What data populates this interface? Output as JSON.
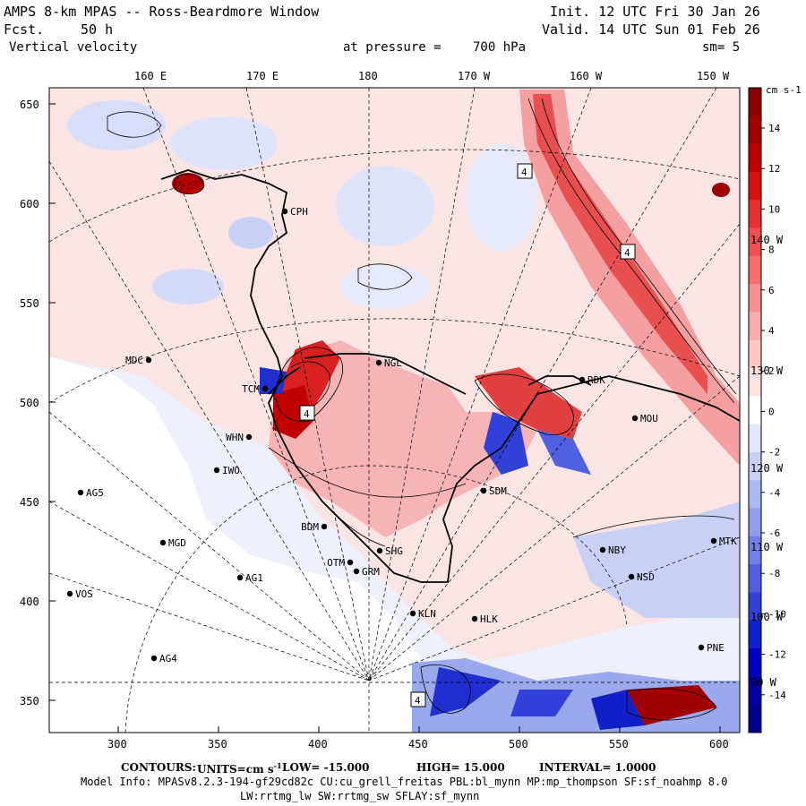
{
  "header": {
    "title": "AMPS 8-km MPAS -- Ross-Beardmore Window",
    "forecast_label": "Fcst.",
    "forecast_value": "50 h",
    "field": "Vertical velocity",
    "init": "Init. 12 UTC Fri 30 Jan 26",
    "valid": "Valid. 14 UTC Sun 01 Feb 26",
    "pressure_label": "at pressure =",
    "pressure_value": "700 hPa",
    "smoothing": "sm= 5"
  },
  "top_axis": [
    "160 E",
    "170 E",
    "180",
    "170 W",
    "160 W",
    "150 W"
  ],
  "left_axis": [
    "650",
    "600",
    "550",
    "500",
    "450",
    "400",
    "350"
  ],
  "bottom_axis": [
    "300",
    "350",
    "400",
    "450",
    "500",
    "550",
    "600"
  ],
  "meridian_labels": [
    "140 W",
    "130 W",
    "120 W",
    "110 W",
    "100 W",
    "90 W"
  ],
  "colorbar": {
    "units": "cm s-1",
    "labels": [
      "14",
      "12",
      "10",
      "8",
      "6",
      "4",
      "2",
      "0",
      "-2",
      "-4",
      "-6",
      "-8",
      "-10",
      "-12",
      "-14"
    ],
    "colors": [
      "#8a0000",
      "#a50000",
      "#c00000",
      "#d81010",
      "#e83030",
      "#f05050",
      "#f47070",
      "#f79090",
      "#f9acac",
      "#fbc8c8",
      "#fde2e2",
      "#ffffff",
      "#e2e6fb",
      "#c8d0f6",
      "#acb8f1",
      "#909eec",
      "#7080e6",
      "#5060e0",
      "#3040d8",
      "#1020d0",
      "#0000c0",
      "#0000a5",
      "#00008a"
    ]
  },
  "stations": [
    {
      "code": "CPH"
    },
    {
      "code": "MDC"
    },
    {
      "code": "TCM"
    },
    {
      "code": "NGL"
    },
    {
      "code": "WHN"
    },
    {
      "code": "IWO"
    },
    {
      "code": "AG5"
    },
    {
      "code": "BDM"
    },
    {
      "code": "MGD"
    },
    {
      "code": "OTM"
    },
    {
      "code": "SHG"
    },
    {
      "code": "GRM"
    },
    {
      "code": "AG1"
    },
    {
      "code": "VOS"
    },
    {
      "code": "KLN"
    },
    {
      "code": "HLK"
    },
    {
      "code": "AG4"
    },
    {
      "code": "SDM"
    },
    {
      "code": "NBY"
    },
    {
      "code": "MOU"
    },
    {
      "code": "MTK"
    },
    {
      "code": "NSD"
    },
    {
      "code": "PNE"
    },
    {
      "code": "RDK"
    }
  ],
  "extrema_labels": [
    "4",
    "4",
    "4",
    "4"
  ],
  "footer": {
    "contours_label": "CONTOURS:",
    "units_label": "UNITS=cm s",
    "units_exp": "-1",
    "low": "LOW= -15.000",
    "high": "HIGH= 15.000",
    "interval": "INTERVAL= 1.0000",
    "model_info": "Model Info: MPASv8.2.3-194-gf29cd82c CU:cu_grell_freitas PBL:bl_mynn MP:mp_thompson SF:sf_noahmp 8.0",
    "model_info2": "LW:rrtmg_lw SW:rrtmg_sw SFLAY:sf_mynn"
  }
}
